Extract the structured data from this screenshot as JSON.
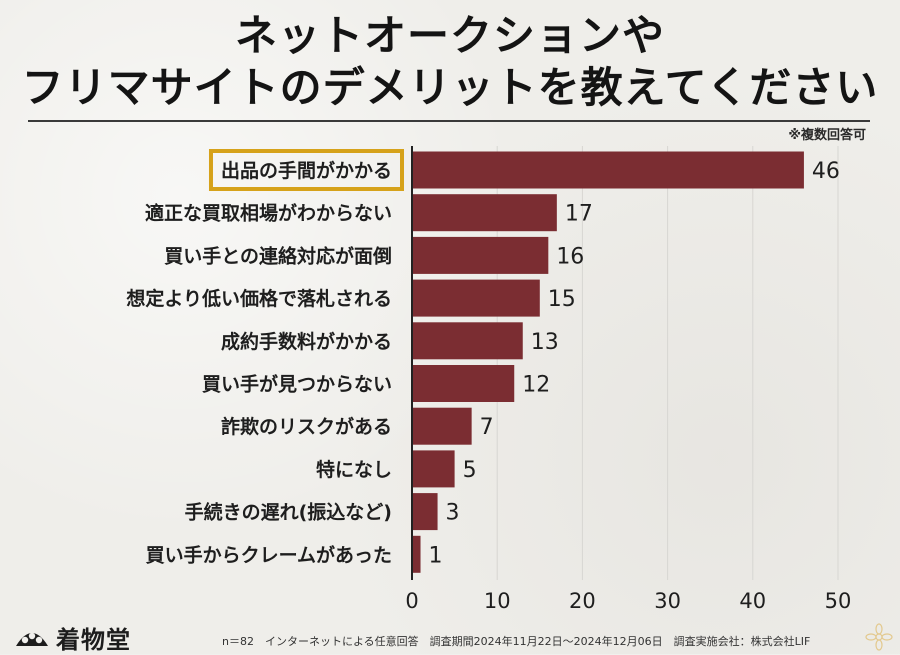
{
  "title_lines": [
    "ネットオークションや",
    "フリマサイトのデメリットを教えてください"
  ],
  "note": "※複数回答可",
  "colors": {
    "bar": "#7b2d32",
    "highlight": "#d6a21a",
    "axis": "#222222",
    "grid": "#d7d6d2"
  },
  "chart_data": {
    "type": "bar",
    "orientation": "horizontal",
    "categories": [
      "出品の手間がかかる",
      "適正な買取相場がわからない",
      "買い手との連絡対応が面倒",
      "想定より低い価格で落札される",
      "成約手数料がかかる",
      "買い手が見つからない",
      "詐欺のリスクがある",
      "特になし",
      "手続きの遅れ(振込など)",
      "買い手からクレームがあった"
    ],
    "values": [
      46,
      17,
      16,
      15,
      13,
      12,
      7,
      5,
      3,
      1
    ],
    "highlighted_category": "出品の手間がかかる",
    "xlim": [
      0,
      50
    ],
    "xticks": [
      0,
      10,
      20,
      30,
      40,
      50
    ],
    "grid": true,
    "data_labels": true
  },
  "footer": {
    "logo_text": "着物堂",
    "logo_icon": "fan-logo-icon",
    "corner_icon": "flower-icon",
    "footnote": "n＝82　インターネットによる任意回答　調査期間2024年11月22日～2024年12月06日　調査実施会社：株式会社LIF"
  }
}
